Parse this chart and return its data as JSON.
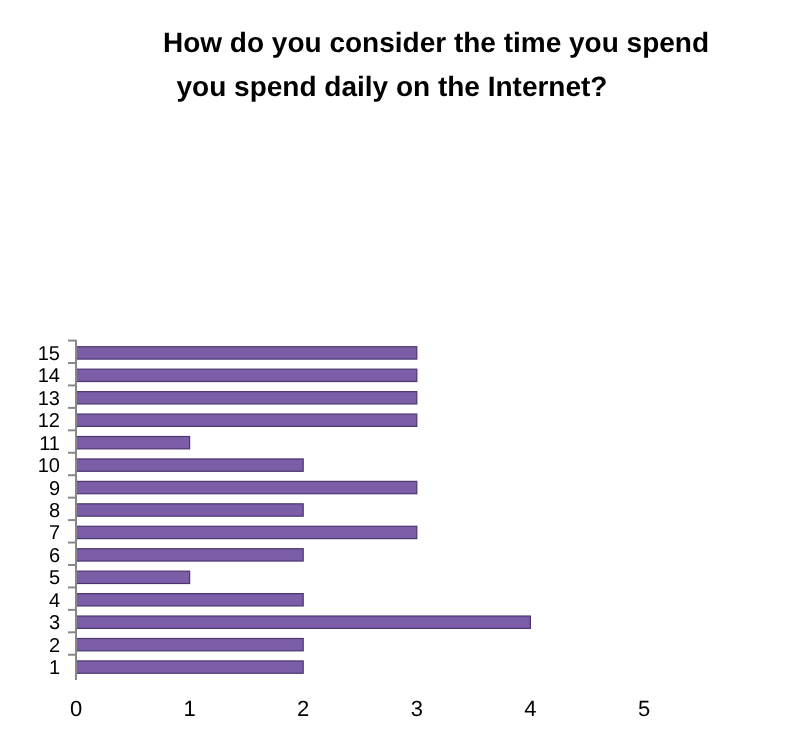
{
  "chart_data": {
    "type": "bar",
    "orientation": "horizontal",
    "title": "How do you consider the time you spend\nyou spend daily on the Internet?",
    "categories": [
      "15",
      "14",
      "13",
      "12",
      "11",
      "10",
      "9",
      "8",
      "7",
      "6",
      "5",
      "4",
      "3",
      "2",
      "1"
    ],
    "values": [
      3,
      3,
      3,
      3,
      1,
      2,
      3,
      2,
      3,
      2,
      1,
      2,
      4,
      2,
      2
    ],
    "color": "#7b5ea7",
    "xlim": [
      0,
      5
    ],
    "xticks": [
      0,
      1,
      2,
      3,
      4,
      5
    ]
  }
}
